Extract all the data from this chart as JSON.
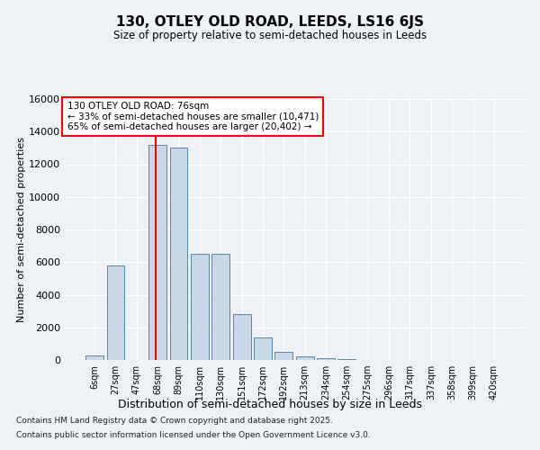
{
  "title": "130, OTLEY OLD ROAD, LEEDS, LS16 6JS",
  "subtitle": "Size of property relative to semi-detached houses in Leeds",
  "xlabel": "Distribution of semi-detached houses by size in Leeds",
  "ylabel": "Number of semi-detached properties",
  "categories": [
    "6sqm",
    "27sqm",
    "47sqm",
    "68sqm",
    "89sqm",
    "110sqm",
    "130sqm",
    "151sqm",
    "172sqm",
    "192sqm",
    "213sqm",
    "234sqm",
    "254sqm",
    "275sqm",
    "296sqm",
    "317sqm",
    "337sqm",
    "358sqm",
    "399sqm",
    "420sqm"
  ],
  "values": [
    300,
    5800,
    0,
    13200,
    13000,
    6500,
    6500,
    2800,
    1400,
    500,
    200,
    100,
    70,
    20,
    0,
    0,
    0,
    0,
    0,
    0
  ],
  "bar_color": "#c8d8e8",
  "bar_edge_color": "#5588aa",
  "vline_position": 3,
  "vline_color": "red",
  "annotation_text": "130 OTLEY OLD ROAD: 76sqm\n← 33% of semi-detached houses are smaller (10,471)\n65% of semi-detached houses are larger (20,402) →",
  "annotation_box_color": "white",
  "annotation_box_edge": "red",
  "ylim": [
    0,
    16000
  ],
  "yticks": [
    0,
    2000,
    4000,
    6000,
    8000,
    10000,
    12000,
    14000,
    16000
  ],
  "background_color": "#eef2f7",
  "footer_line1": "Contains HM Land Registry data © Crown copyright and database right 2025.",
  "footer_line2": "Contains public sector information licensed under the Open Government Licence v3.0."
}
